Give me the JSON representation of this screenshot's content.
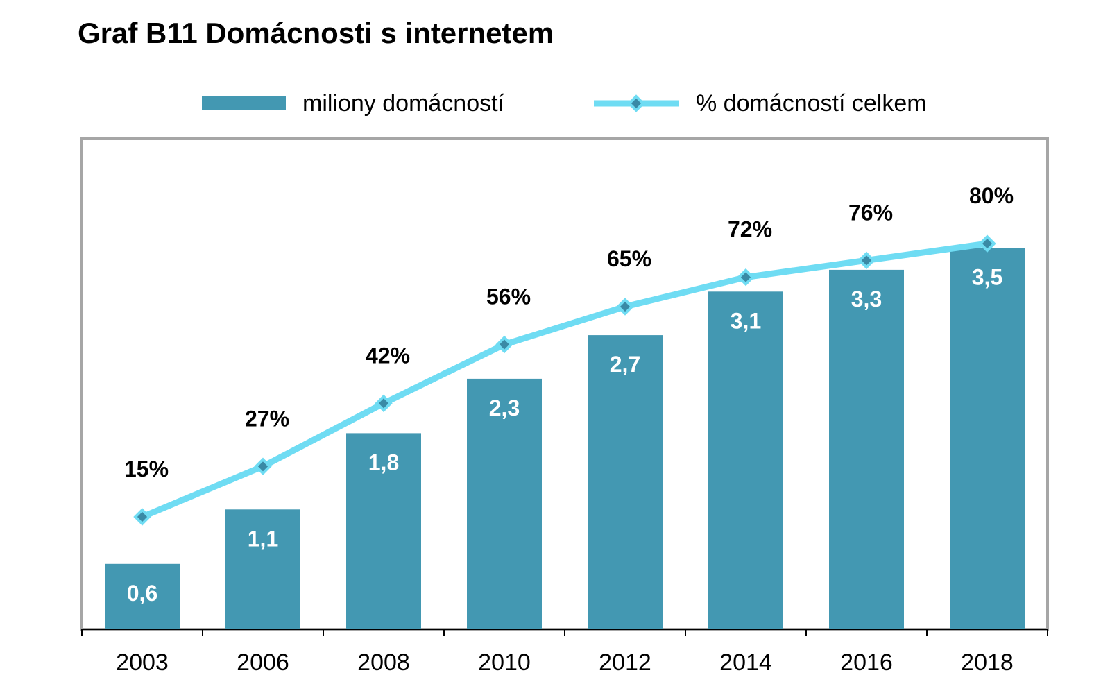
{
  "chart_data": {
    "type": "bar",
    "title": "Graf B11 Domácnosti s internetem",
    "categories": [
      "2003",
      "2006",
      "2008",
      "2010",
      "2012",
      "2014",
      "2016",
      "2018"
    ],
    "series": [
      {
        "name": "miliony domácností",
        "kind": "bar",
        "values": [
          0.6,
          1.1,
          1.8,
          2.3,
          2.7,
          3.1,
          3.3,
          3.5
        ],
        "labels": [
          "0,6",
          "1,1",
          "1,8",
          "2,3",
          "2,7",
          "3,1",
          "3,3",
          "3,5"
        ],
        "color": "#4398b2"
      },
      {
        "name": "% domácností celkem",
        "kind": "line",
        "values": [
          15,
          27,
          42,
          56,
          65,
          72,
          76,
          80
        ],
        "labels": [
          "15%",
          "27%",
          "42%",
          "56%",
          "65%",
          "72%",
          "76%",
          "80%"
        ],
        "color": "#6fdcf3",
        "marker_color": "#3a8aa6"
      }
    ],
    "legend_position": "top",
    "grid": false,
    "xlabel": "",
    "ylabel": ""
  },
  "colors": {
    "frame": "#a6a6a6",
    "axis": "#000000"
  }
}
